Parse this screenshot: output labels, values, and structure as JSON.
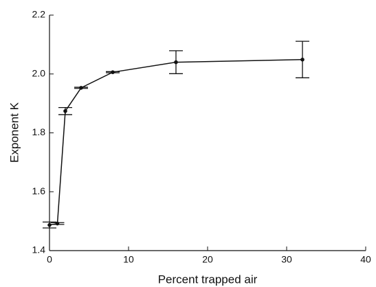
{
  "chart_data": {
    "type": "line",
    "x": [
      0,
      1,
      2,
      4,
      8,
      16,
      32
    ],
    "series": [
      {
        "color": "#111111",
        "values": [
          1.487,
          1.492,
          1.874,
          1.953,
          2.006,
          2.04,
          2.049
        ],
        "errors": [
          0.01,
          0.003,
          0.012,
          0.002,
          0.002,
          0.039,
          0.062
        ]
      }
    ],
    "xlim": [
      0,
      40
    ],
    "xticks": [
      0,
      10,
      20,
      30,
      40
    ],
    "ylim": [
      1.4,
      2.2
    ],
    "yticks": [
      1.4,
      1.6,
      1.8,
      {
        "value": 2,
        "label": "2.0"
      },
      2.2
    ],
    "xlabel": "Percent trapped air",
    "ylabel": "Exponent K"
  }
}
